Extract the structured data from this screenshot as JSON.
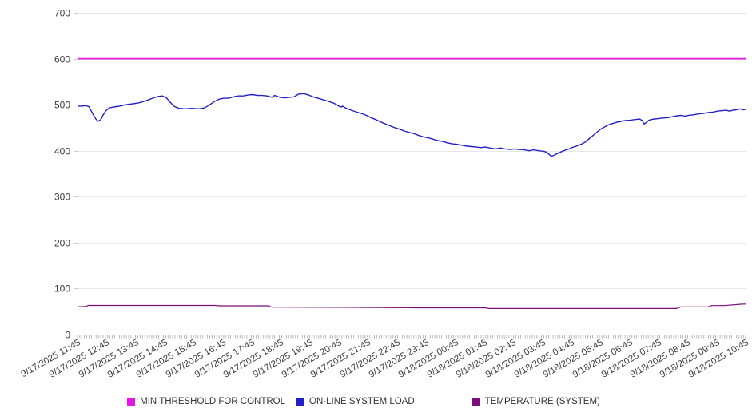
{
  "chart_data": {
    "type": "line",
    "title": "",
    "grid": "horizontal",
    "legend_position": "bottom",
    "y_axis": {
      "min": 0,
      "max": 700,
      "step": 100,
      "tick_labels": [
        "0",
        "100",
        "200",
        "300",
        "400",
        "500",
        "600",
        "700"
      ]
    },
    "x_axis": {
      "tick_labels": [
        "9/17/2025 11:45",
        "9/17/2025 12:45",
        "9/17/2025 13:45",
        "9/17/2025 14:45",
        "9/17/2025 15:45",
        "9/17/2025 16:45",
        "9/17/2025 17:45",
        "9/17/2025 18:45",
        "9/17/2025 19:45",
        "9/17/2025 20:45",
        "9/17/2025 21:45",
        "9/17/2025 22:45",
        "9/17/2025 23:45",
        "9/18/2025 00:45",
        "9/18/2025 01:45",
        "9/18/2025 02:45",
        "9/18/2025 03:45",
        "9/18/2025 04:45",
        "9/18/2025 05:45",
        "9/18/2025 06:45",
        "9/18/2025 07:45",
        "9/18/2025 08:45",
        "9/18/2025 09:45",
        "9/18/2025 10:45"
      ]
    },
    "series": [
      {
        "name": "MIN THRESHOLD FOR CONTROL",
        "color": "#e316e3",
        "points": [
          [
            0,
            600
          ],
          [
            1,
            600
          ]
        ]
      },
      {
        "name": "ON-LINE SYSTEM LOAD",
        "color": "#2121c8",
        "points": [
          [
            0,
            497
          ],
          [
            0.006,
            497
          ],
          [
            0.012,
            498
          ],
          [
            0.017,
            496
          ],
          [
            0.02,
            488
          ],
          [
            0.024,
            477
          ],
          [
            0.028,
            468
          ],
          [
            0.031,
            464
          ],
          [
            0.035,
            468
          ],
          [
            0.038,
            477
          ],
          [
            0.042,
            486
          ],
          [
            0.047,
            493
          ],
          [
            0.054,
            495
          ],
          [
            0.063,
            497
          ],
          [
            0.073,
            500
          ],
          [
            0.083,
            502
          ],
          [
            0.092,
            504
          ],
          [
            0.099,
            507
          ],
          [
            0.107,
            511
          ],
          [
            0.114,
            515
          ],
          [
            0.121,
            518
          ],
          [
            0.127,
            519
          ],
          [
            0.133,
            515
          ],
          [
            0.139,
            505
          ],
          [
            0.145,
            496
          ],
          [
            0.152,
            492
          ],
          [
            0.162,
            491
          ],
          [
            0.171,
            492
          ],
          [
            0.181,
            491
          ],
          [
            0.19,
            493
          ],
          [
            0.197,
            499
          ],
          [
            0.205,
            507
          ],
          [
            0.212,
            512
          ],
          [
            0.219,
            514
          ],
          [
            0.226,
            514
          ],
          [
            0.233,
            517
          ],
          [
            0.24,
            519
          ],
          [
            0.248,
            519
          ],
          [
            0.255,
            521
          ],
          [
            0.262,
            522
          ],
          [
            0.269,
            520
          ],
          [
            0.276,
            520
          ],
          [
            0.284,
            519
          ],
          [
            0.291,
            516
          ],
          [
            0.295,
            520
          ],
          [
            0.303,
            516
          ],
          [
            0.31,
            515
          ],
          [
            0.317,
            516
          ],
          [
            0.324,
            517
          ],
          [
            0.331,
            523
          ],
          [
            0.339,
            524
          ],
          [
            0.346,
            521
          ],
          [
            0.353,
            517
          ],
          [
            0.36,
            514
          ],
          [
            0.367,
            511
          ],
          [
            0.374,
            508
          ],
          [
            0.382,
            504
          ],
          [
            0.388,
            500
          ],
          [
            0.391,
            497
          ],
          [
            0.395,
            495
          ],
          [
            0.397,
            497
          ],
          [
            0.401,
            493
          ],
          [
            0.406,
            490
          ],
          [
            0.41,
            488
          ],
          [
            0.418,
            484
          ],
          [
            0.425,
            481
          ],
          [
            0.432,
            477
          ],
          [
            0.439,
            472
          ],
          [
            0.446,
            468
          ],
          [
            0.453,
            463
          ],
          [
            0.461,
            458
          ],
          [
            0.468,
            454
          ],
          [
            0.475,
            450
          ],
          [
            0.482,
            447
          ],
          [
            0.489,
            443
          ],
          [
            0.496,
            440
          ],
          [
            0.504,
            437
          ],
          [
            0.511,
            433
          ],
          [
            0.518,
            430
          ],
          [
            0.525,
            428
          ],
          [
            0.532,
            425
          ],
          [
            0.539,
            422
          ],
          [
            0.547,
            420
          ],
          [
            0.554,
            417
          ],
          [
            0.561,
            415
          ],
          [
            0.568,
            414
          ],
          [
            0.575,
            412
          ],
          [
            0.583,
            410
          ],
          [
            0.59,
            409
          ],
          [
            0.597,
            408
          ],
          [
            0.604,
            407
          ],
          [
            0.611,
            408
          ],
          [
            0.618,
            406
          ],
          [
            0.626,
            404
          ],
          [
            0.633,
            406
          ],
          [
            0.64,
            404
          ],
          [
            0.647,
            403
          ],
          [
            0.654,
            404
          ],
          [
            0.661,
            403
          ],
          [
            0.669,
            402
          ],
          [
            0.676,
            400
          ],
          [
            0.683,
            402
          ],
          [
            0.69,
            400
          ],
          [
            0.697,
            399
          ],
          [
            0.702,
            397
          ],
          [
            0.706,
            392
          ],
          [
            0.709,
            388
          ],
          [
            0.713,
            390
          ],
          [
            0.717,
            393
          ],
          [
            0.721,
            396
          ],
          [
            0.726,
            399
          ],
          [
            0.731,
            402
          ],
          [
            0.736,
            404
          ],
          [
            0.74,
            407
          ],
          [
            0.745,
            409
          ],
          [
            0.75,
            412
          ],
          [
            0.755,
            415
          ],
          [
            0.76,
            419
          ],
          [
            0.764,
            424
          ],
          [
            0.769,
            430
          ],
          [
            0.774,
            436
          ],
          [
            0.779,
            442
          ],
          [
            0.783,
            447
          ],
          [
            0.788,
            451
          ],
          [
            0.793,
            455
          ],
          [
            0.798,
            458
          ],
          [
            0.803,
            460
          ],
          [
            0.807,
            462
          ],
          [
            0.812,
            463
          ],
          [
            0.817,
            465
          ],
          [
            0.822,
            466
          ],
          [
            0.827,
            466
          ],
          [
            0.831,
            467
          ],
          [
            0.836,
            468
          ],
          [
            0.841,
            469
          ],
          [
            0.845,
            466
          ],
          [
            0.848,
            458
          ],
          [
            0.852,
            462
          ],
          [
            0.855,
            466
          ],
          [
            0.859,
            468
          ],
          [
            0.864,
            469
          ],
          [
            0.87,
            470
          ],
          [
            0.877,
            471
          ],
          [
            0.884,
            472
          ],
          [
            0.891,
            474
          ],
          [
            0.898,
            476
          ],
          [
            0.904,
            477
          ],
          [
            0.909,
            475
          ],
          [
            0.915,
            477
          ],
          [
            0.922,
            478
          ],
          [
            0.929,
            480
          ],
          [
            0.937,
            481
          ],
          [
            0.944,
            483
          ],
          [
            0.951,
            484
          ],
          [
            0.958,
            486
          ],
          [
            0.965,
            487
          ],
          [
            0.971,
            488
          ],
          [
            0.976,
            486
          ],
          [
            0.981,
            488
          ],
          [
            0.986,
            489
          ],
          [
            0.992,
            491
          ],
          [
            0.996,
            489
          ],
          [
            1,
            490
          ]
        ]
      },
      {
        "name": "TEMPERATURE (SYSTEM)",
        "color": "#7c0e7c",
        "points": [
          [
            0,
            60.5
          ],
          [
            0.012,
            61
          ],
          [
            0.016,
            63.4
          ],
          [
            0.207,
            63.4
          ],
          [
            0.212,
            62.6
          ],
          [
            0.285,
            62.6
          ],
          [
            0.291,
            59.6
          ],
          [
            0.4,
            59.2
          ],
          [
            0.506,
            58.2
          ],
          [
            0.61,
            58.2
          ],
          [
            0.616,
            56.7
          ],
          [
            0.896,
            56.7
          ],
          [
            0.903,
            60.3
          ],
          [
            0.944,
            60.3
          ],
          [
            0.949,
            63
          ],
          [
            0.968,
            63
          ],
          [
            0.993,
            66
          ],
          [
            1,
            66.3
          ]
        ]
      }
    ]
  }
}
